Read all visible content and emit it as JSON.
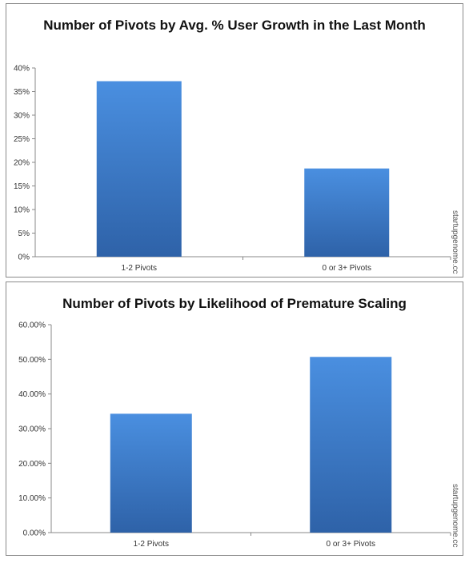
{
  "chart_data": [
    {
      "type": "bar",
      "title": "Number of Pivots by Avg. % User Growth in the Last Month",
      "categories": [
        "1-2 Pivots",
        "0 or 3+ Pivots"
      ],
      "values": [
        0.372,
        0.187
      ],
      "ylim": [
        0,
        0.4
      ],
      "yticks": [
        0,
        0.05,
        0.1,
        0.15,
        0.2,
        0.25,
        0.3,
        0.35,
        0.4
      ],
      "ytick_labels": [
        "0%",
        "5%",
        "10%",
        "15%",
        "20%",
        "25%",
        "30%",
        "35%",
        "40%"
      ],
      "xlabel": "",
      "ylabel": "",
      "grid": false,
      "bar_color": "#3a7bd5"
    },
    {
      "type": "bar",
      "title": "Number of Pivots by Likelihood of Premature Scaling",
      "categories": [
        "1-2 Pivots",
        "0 or 3+ Pivots"
      ],
      "values": [
        0.343,
        0.507
      ],
      "ylim": [
        0,
        0.6
      ],
      "yticks": [
        0,
        0.1,
        0.2,
        0.3,
        0.4,
        0.5,
        0.6
      ],
      "ytick_labels": [
        "0.00%",
        "10.00%",
        "20.00%",
        "30.00%",
        "40.00%",
        "50.00%",
        "60.00%"
      ],
      "xlabel": "",
      "ylabel": "",
      "grid": false,
      "bar_color": "#3a7bd5"
    }
  ],
  "watermark": "startupgenome.cc"
}
